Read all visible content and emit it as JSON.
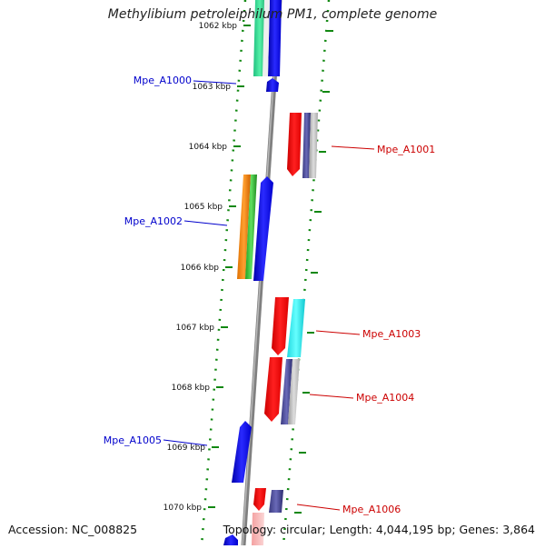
{
  "title": "Methylibium petroleiphilum PM1, complete genome",
  "footer": {
    "accession": "Accession: NC_008825",
    "topology": "Topology: circular; Length: 4,044,195 bp; Genes: 3,864"
  },
  "ticks": [
    "1062 kbp",
    "1063 kbp",
    "1064 kbp",
    "1065 kbp",
    "1066 kbp",
    "1067 kbp",
    "1068 kbp",
    "1069 kbp",
    "1070 kbp"
  ],
  "genes": [
    {
      "label": "Mpe_A1000",
      "color": "#0000cc",
      "side": "left"
    },
    {
      "label": "Mpe_A1001",
      "color": "#cc0000",
      "side": "right"
    },
    {
      "label": "Mpe_A1002",
      "color": "#0000cc",
      "side": "left"
    },
    {
      "label": "Mpe_A1003",
      "color": "#cc0000",
      "side": "right"
    },
    {
      "label": "Mpe_A1004",
      "color": "#cc0000",
      "side": "right"
    },
    {
      "label": "Mpe_A1005",
      "color": "#0000cc",
      "side": "left"
    },
    {
      "label": "Mpe_A1006",
      "color": "#cc0000",
      "side": "right"
    }
  ]
}
